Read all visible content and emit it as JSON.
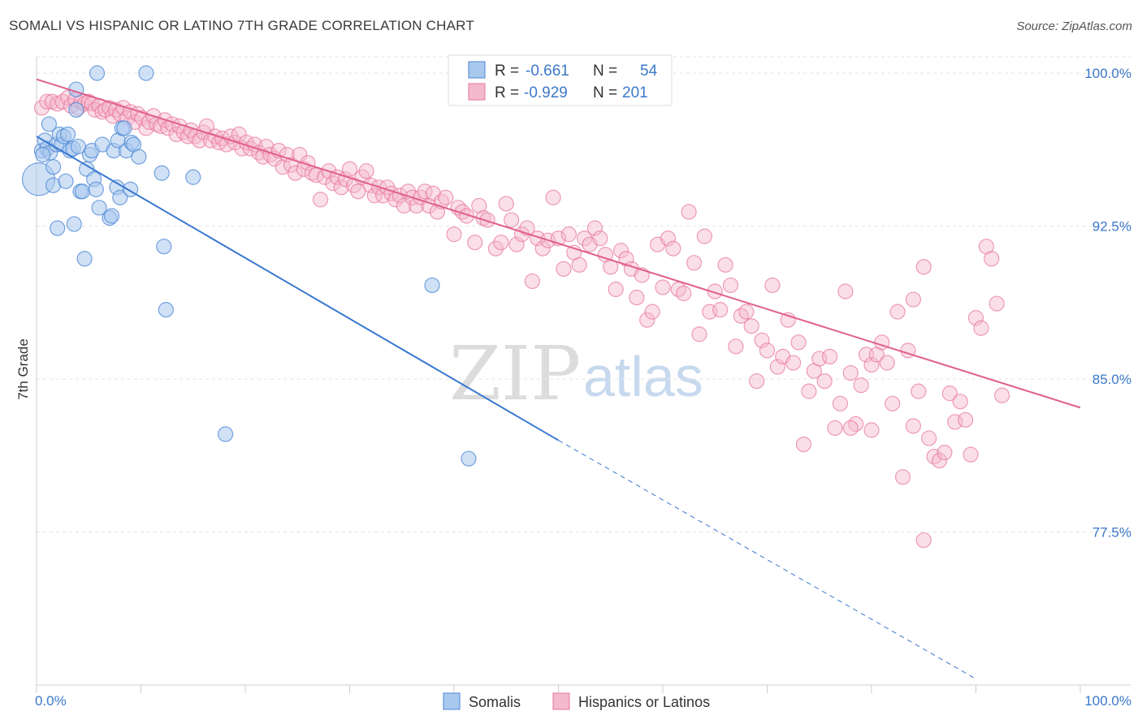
{
  "title": "SOMALI VS HISPANIC OR LATINO 7TH GRADE CORRELATION CHART",
  "source": "Source: ZipAtlas.com",
  "watermark": {
    "part1": "ZIP",
    "part2": "atlas"
  },
  "colors": {
    "somali": "#4a86d4",
    "somali_fill": "#a9c8ee",
    "hispanic": "#e8739b",
    "hispanic_fill": "#f4b9cd",
    "tick_text": "#3b78c9"
  },
  "legend": {
    "rows": [
      {
        "r_label": "R =",
        "r_value": "-0.661",
        "n_label": "N =",
        "n_value": "54"
      },
      {
        "r_label": "R =",
        "r_value": "-0.929",
        "n_label": "N =",
        "n_value": "201"
      }
    ]
  },
  "chart_data": {
    "type": "scatter",
    "title": "SOMALI VS HISPANIC OR LATINO 7TH GRADE CORRELATION CHART",
    "xlabel": "",
    "ylabel": "7th Grade",
    "xlim": [
      0,
      100
    ],
    "ylim": [
      70,
      100.8
    ],
    "x_tick_labels": [
      "0.0%",
      "100.0%"
    ],
    "y_ticks": [
      77.5,
      85.0,
      92.5,
      100.0
    ],
    "y_tick_labels": [
      "77.5%",
      "85.0%",
      "92.5%",
      "100.0%"
    ],
    "grid": true,
    "legend_position": "top-center",
    "series": [
      {
        "name": "Somalis",
        "color": "#4a86d4",
        "points": [
          [
            0.2,
            94.8
          ],
          [
            0.5,
            96.2
          ],
          [
            0.8,
            96.7
          ],
          [
            1.0,
            96.3
          ],
          [
            1.2,
            97.5
          ],
          [
            1.3,
            96.1
          ],
          [
            1.6,
            95.4
          ],
          [
            1.6,
            94.5
          ],
          [
            1.9,
            96.5
          ],
          [
            2.0,
            92.4
          ],
          [
            2.2,
            97.0
          ],
          [
            2.4,
            96.5
          ],
          [
            2.6,
            96.9
          ],
          [
            2.8,
            94.7
          ],
          [
            3.0,
            97.0
          ],
          [
            3.2,
            96.2
          ],
          [
            3.5,
            96.3
          ],
          [
            3.6,
            92.6
          ],
          [
            3.8,
            98.2
          ],
          [
            3.8,
            99.2
          ],
          [
            4.0,
            96.4
          ],
          [
            4.2,
            94.2
          ],
          [
            4.4,
            94.2
          ],
          [
            4.6,
            90.9
          ],
          [
            4.8,
            95.3
          ],
          [
            5.1,
            96.0
          ],
          [
            5.3,
            96.2
          ],
          [
            5.5,
            94.8
          ],
          [
            5.7,
            94.3
          ],
          [
            5.8,
            100.0
          ],
          [
            6.0,
            93.4
          ],
          [
            6.3,
            96.5
          ],
          [
            7.0,
            92.9
          ],
          [
            7.2,
            93.0
          ],
          [
            7.4,
            96.2
          ],
          [
            7.7,
            94.4
          ],
          [
            7.8,
            96.7
          ],
          [
            8.0,
            93.9
          ],
          [
            8.2,
            97.3
          ],
          [
            8.4,
            97.3
          ],
          [
            8.6,
            96.2
          ],
          [
            9.0,
            94.3
          ],
          [
            9.1,
            96.6
          ],
          [
            9.3,
            96.5
          ],
          [
            9.8,
            95.9
          ],
          [
            10.5,
            100.0
          ],
          [
            12.0,
            95.1
          ],
          [
            12.2,
            91.5
          ],
          [
            12.4,
            88.4
          ],
          [
            15.0,
            94.9
          ],
          [
            18.1,
            82.3
          ],
          [
            37.9,
            89.6
          ],
          [
            41.4,
            81.1
          ],
          [
            0.6,
            96.0
          ]
        ],
        "trend": {
          "x_start": 0.0,
          "y_start": 96.9,
          "x_solid_end": 50.0,
          "y_solid_end": 82.0,
          "x_dash_end": 90.0,
          "y_dash_end": 70.3
        }
      },
      {
        "name": "Hispanics or Latinos",
        "color": "#e8739b",
        "points": [
          [
            0.5,
            98.3
          ],
          [
            1.0,
            98.6
          ],
          [
            1.5,
            98.6
          ],
          [
            2.0,
            98.5
          ],
          [
            2.5,
            98.6
          ],
          [
            3.0,
            98.8
          ],
          [
            3.3,
            98.4
          ],
          [
            3.7,
            98.7
          ],
          [
            4.0,
            98.3
          ],
          [
            4.3,
            98.6
          ],
          [
            4.6,
            98.5
          ],
          [
            5.0,
            98.6
          ],
          [
            5.3,
            98.5
          ],
          [
            5.6,
            98.2
          ],
          [
            6.0,
            98.4
          ],
          [
            6.3,
            98.1
          ],
          [
            6.6,
            98.2
          ],
          [
            7.0,
            98.3
          ],
          [
            7.3,
            97.9
          ],
          [
            7.6,
            98.2
          ],
          [
            8.0,
            98.0
          ],
          [
            8.3,
            98.3
          ],
          [
            8.7,
            97.8
          ],
          [
            9.0,
            98.1
          ],
          [
            9.4,
            97.6
          ],
          [
            9.7,
            98.0
          ],
          [
            10.1,
            97.8
          ],
          [
            10.5,
            97.3
          ],
          [
            10.8,
            97.6
          ],
          [
            11.2,
            97.9
          ],
          [
            11.5,
            97.5
          ],
          [
            11.9,
            97.4
          ],
          [
            12.3,
            97.7
          ],
          [
            12.6,
            97.3
          ],
          [
            13.0,
            97.5
          ],
          [
            13.4,
            97.0
          ],
          [
            13.7,
            97.4
          ],
          [
            14.1,
            97.1
          ],
          [
            14.5,
            96.9
          ],
          [
            14.8,
            97.2
          ],
          [
            15.2,
            96.9
          ],
          [
            15.6,
            96.7
          ],
          [
            16.0,
            97.1
          ],
          [
            16.3,
            97.4
          ],
          [
            16.7,
            96.7
          ],
          [
            17.1,
            96.9
          ],
          [
            17.5,
            96.6
          ],
          [
            17.8,
            96.8
          ],
          [
            18.2,
            96.5
          ],
          [
            18.6,
            96.9
          ],
          [
            19.0,
            96.6
          ],
          [
            19.4,
            97.0
          ],
          [
            19.7,
            96.3
          ],
          [
            20.1,
            96.6
          ],
          [
            20.5,
            96.3
          ],
          [
            20.9,
            96.5
          ],
          [
            21.3,
            96.1
          ],
          [
            21.7,
            95.9
          ],
          [
            22.0,
            96.4
          ],
          [
            22.4,
            96.0
          ],
          [
            22.8,
            95.8
          ],
          [
            23.2,
            96.2
          ],
          [
            23.6,
            95.4
          ],
          [
            24.0,
            96.0
          ],
          [
            24.4,
            95.5
          ],
          [
            24.8,
            95.1
          ],
          [
            25.2,
            96.0
          ],
          [
            25.6,
            95.3
          ],
          [
            26.0,
            95.6
          ],
          [
            26.4,
            95.1
          ],
          [
            26.8,
            95.0
          ],
          [
            27.2,
            93.8
          ],
          [
            27.6,
            94.9
          ],
          [
            28.0,
            95.2
          ],
          [
            28.4,
            94.6
          ],
          [
            28.8,
            94.9
          ],
          [
            29.2,
            94.4
          ],
          [
            29.6,
            94.8
          ],
          [
            30.0,
            95.3
          ],
          [
            30.4,
            94.5
          ],
          [
            30.8,
            94.2
          ],
          [
            31.2,
            94.9
          ],
          [
            31.6,
            95.2
          ],
          [
            32.0,
            94.5
          ],
          [
            32.4,
            94.0
          ],
          [
            32.8,
            94.4
          ],
          [
            33.2,
            94.0
          ],
          [
            33.6,
            94.4
          ],
          [
            34.0,
            94.1
          ],
          [
            34.4,
            93.8
          ],
          [
            34.8,
            94.0
          ],
          [
            35.2,
            93.5
          ],
          [
            35.6,
            94.2
          ],
          [
            36.0,
            93.9
          ],
          [
            36.4,
            93.5
          ],
          [
            36.8,
            93.9
          ],
          [
            37.2,
            94.2
          ],
          [
            37.6,
            93.5
          ],
          [
            38.0,
            94.1
          ],
          [
            38.4,
            93.2
          ],
          [
            38.8,
            93.7
          ],
          [
            39.2,
            93.9
          ],
          [
            40.0,
            92.1
          ],
          [
            40.4,
            93.4
          ],
          [
            40.8,
            93.2
          ],
          [
            41.2,
            93.0
          ],
          [
            42.0,
            91.7
          ],
          [
            42.4,
            93.5
          ],
          [
            42.8,
            92.9
          ],
          [
            43.2,
            92.8
          ],
          [
            44.0,
            91.4
          ],
          [
            44.5,
            91.7
          ],
          [
            45.0,
            93.6
          ],
          [
            45.5,
            92.8
          ],
          [
            46.0,
            91.6
          ],
          [
            46.5,
            92.1
          ],
          [
            47.0,
            92.4
          ],
          [
            47.5,
            89.8
          ],
          [
            48.0,
            91.9
          ],
          [
            48.5,
            91.4
          ],
          [
            49.0,
            91.8
          ],
          [
            49.5,
            93.9
          ],
          [
            50.0,
            91.9
          ],
          [
            50.5,
            90.4
          ],
          [
            51.0,
            92.1
          ],
          [
            51.5,
            91.2
          ],
          [
            52.0,
            90.6
          ],
          [
            52.5,
            91.9
          ],
          [
            53.0,
            91.6
          ],
          [
            53.5,
            92.4
          ],
          [
            54.0,
            91.9
          ],
          [
            54.5,
            91.1
          ],
          [
            55.0,
            90.5
          ],
          [
            55.5,
            89.4
          ],
          [
            56.0,
            91.3
          ],
          [
            56.5,
            90.9
          ],
          [
            57.0,
            90.4
          ],
          [
            57.5,
            89.0
          ],
          [
            58.0,
            90.1
          ],
          [
            58.5,
            87.9
          ],
          [
            59.0,
            88.3
          ],
          [
            59.5,
            91.6
          ],
          [
            60.0,
            89.5
          ],
          [
            60.5,
            91.9
          ],
          [
            61.0,
            91.4
          ],
          [
            61.5,
            89.4
          ],
          [
            62.0,
            89.2
          ],
          [
            62.5,
            93.2
          ],
          [
            63.0,
            90.7
          ],
          [
            63.5,
            87.2
          ],
          [
            64.0,
            92.0
          ],
          [
            64.5,
            88.3
          ],
          [
            65.0,
            89.3
          ],
          [
            65.5,
            88.4
          ],
          [
            66.0,
            90.6
          ],
          [
            66.5,
            89.6
          ],
          [
            67.0,
            86.6
          ],
          [
            67.5,
            88.1
          ],
          [
            68.0,
            88.3
          ],
          [
            68.5,
            87.6
          ],
          [
            69.0,
            84.9
          ],
          [
            69.5,
            86.9
          ],
          [
            70.0,
            86.4
          ],
          [
            70.5,
            89.6
          ],
          [
            71.0,
            85.6
          ],
          [
            71.5,
            86.1
          ],
          [
            72.0,
            87.9
          ],
          [
            72.5,
            85.8
          ],
          [
            73.0,
            86.8
          ],
          [
            73.5,
            81.8
          ],
          [
            74.0,
            84.4
          ],
          [
            74.5,
            85.4
          ],
          [
            75.0,
            86.0
          ],
          [
            75.5,
            84.9
          ],
          [
            76.0,
            86.1
          ],
          [
            76.5,
            82.6
          ],
          [
            77.0,
            83.8
          ],
          [
            77.5,
            89.3
          ],
          [
            78.0,
            85.3
          ],
          [
            78.5,
            82.8
          ],
          [
            79.0,
            84.7
          ],
          [
            79.5,
            86.2
          ],
          [
            80.0,
            85.7
          ],
          [
            80.5,
            86.2
          ],
          [
            81.0,
            86.8
          ],
          [
            81.5,
            85.8
          ],
          [
            82.0,
            83.8
          ],
          [
            82.5,
            88.3
          ],
          [
            83.0,
            80.2
          ],
          [
            83.5,
            86.4
          ],
          [
            84.0,
            82.7
          ],
          [
            84.5,
            84.4
          ],
          [
            85.0,
            90.5
          ],
          [
            85.5,
            82.1
          ],
          [
            86.0,
            81.2
          ],
          [
            86.5,
            81.0
          ],
          [
            87.0,
            81.4
          ],
          [
            87.5,
            84.3
          ],
          [
            88.0,
            82.9
          ],
          [
            88.5,
            83.9
          ],
          [
            89.0,
            83.0
          ],
          [
            89.5,
            81.3
          ],
          [
            90.0,
            88.0
          ],
          [
            90.5,
            87.5
          ],
          [
            91.0,
            91.5
          ],
          [
            91.5,
            90.9
          ],
          [
            92.0,
            88.7
          ],
          [
            92.5,
            84.2
          ],
          [
            85.0,
            77.1
          ],
          [
            84.0,
            88.9
          ],
          [
            80.0,
            82.5
          ],
          [
            78.0,
            82.6
          ]
        ],
        "trend": {
          "x_start": 0.0,
          "y_start": 99.7,
          "x_end": 100.0,
          "y_end": 83.6
        }
      }
    ]
  },
  "bottom_legend": [
    {
      "label": "Somalis"
    },
    {
      "label": "Hispanics or Latinos"
    }
  ]
}
